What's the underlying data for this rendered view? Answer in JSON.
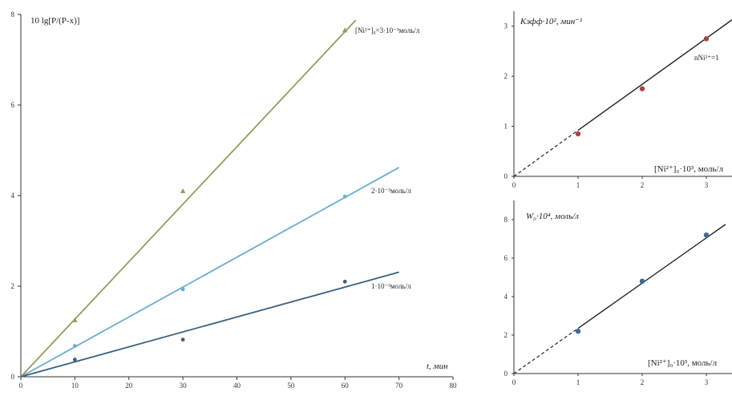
{
  "chart_data": [
    {
      "type": "scatter",
      "ylabel": "10 lg[P/(P-x)]",
      "xlabel": "t, мин",
      "xlim": [
        0,
        80
      ],
      "ylim": [
        0,
        8
      ],
      "x_ticks": [
        "0",
        "10",
        "20",
        "30",
        "40",
        "50",
        "60",
        "70",
        "80"
      ],
      "y_ticks": [
        "0",
        "2",
        "4",
        "6",
        "8"
      ],
      "series": [
        {
          "name": "[Ni²⁺]₀=3·10⁻³моль/л",
          "color": "#9a9a5a",
          "marker": "triangle",
          "x": [
            10,
            30,
            60
          ],
          "y": [
            1.25,
            4.1,
            7.65
          ],
          "fit_slope": 0.127,
          "fit_end_x": 62
        },
        {
          "name": "2·10⁻³моль/л",
          "color": "#6aaed0",
          "marker": "circle",
          "x": [
            10,
            30,
            60
          ],
          "y": [
            0.68,
            1.93,
            3.98
          ],
          "fit_slope": 0.066,
          "fit_end_x": 70
        },
        {
          "name": "1·10⁻³моль/л",
          "color": "#3a6080",
          "marker": "circle",
          "x": [
            10,
            30,
            60
          ],
          "y": [
            0.38,
            0.82,
            2.1
          ],
          "fit_slope": 0.033,
          "fit_end_x": 70
        }
      ]
    },
    {
      "type": "scatter",
      "ylabel": "Kэфф·10², мин⁻¹",
      "xlabel": "[Ni²⁺]₀·10³, моль/л",
      "annotation": "nNi²⁺=1",
      "xlim": [
        0,
        3.4
      ],
      "ylim": [
        0,
        3.3
      ],
      "x_ticks": [
        "0",
        "1",
        "2",
        "3"
      ],
      "y_ticks": [
        "0",
        "1",
        "2",
        "3"
      ],
      "series": [
        {
          "color": "#b04040",
          "x": [
            1,
            2,
            3
          ],
          "y": [
            0.85,
            1.75,
            2.75
          ],
          "fit_slope": 0.92,
          "dash_end_x": 1,
          "fit_end_x": 3.4
        }
      ]
    },
    {
      "type": "scatter",
      "ylabel": "W₀·10⁴, моль/л",
      "xlabel": "[Ni²⁺]₀·10³, моль/л",
      "xlim": [
        0,
        3.4
      ],
      "ylim": [
        0,
        9
      ],
      "x_ticks": [
        "0",
        "1",
        "2",
        "3"
      ],
      "y_ticks": [
        "0",
        "2",
        "4",
        "6",
        "8"
      ],
      "series": [
        {
          "color": "#3a6a9a",
          "x": [
            1,
            2,
            3
          ],
          "y": [
            2.2,
            4.8,
            7.2
          ],
          "fit_slope": 2.35,
          "dash_end_x": 1,
          "fit_end_x": 3.3
        }
      ]
    }
  ]
}
